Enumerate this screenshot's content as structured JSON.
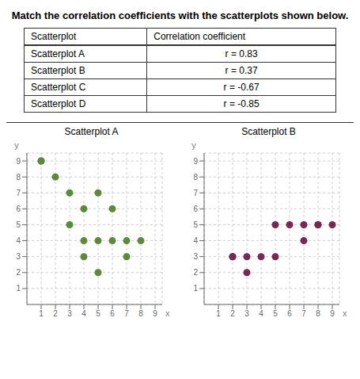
{
  "chart_data": [
    {
      "type": "table",
      "title": "Match the correlation coefficients with the scatterplots shown below.",
      "columns": [
        "Scatterplot",
        "Correlation coefficient"
      ],
      "rows": [
        [
          "Scatterplot A",
          "r = 0.83"
        ],
        [
          "Scatterplot B",
          "r = 0.37"
        ],
        [
          "Scatterplot C",
          "r = -0.67"
        ],
        [
          "Scatterplot D",
          "r = -0.85"
        ]
      ]
    },
    {
      "type": "scatter",
      "title": "Scatterplot A",
      "xlabel": "x",
      "ylabel": "y",
      "color": "#5a8a3a",
      "x": [
        1,
        1,
        2,
        3,
        3,
        4,
        4,
        4,
        5,
        5,
        5,
        6,
        6,
        7,
        7,
        8
      ],
      "y": [
        9,
        9,
        8,
        7,
        5,
        6,
        4,
        3,
        7,
        4,
        2,
        4,
        6,
        3,
        4,
        4
      ],
      "xlim": [
        0,
        9.5
      ],
      "ylim": [
        0,
        9.5
      ],
      "xticks": [
        1,
        2,
        3,
        4,
        5,
        6,
        7,
        8,
        9
      ],
      "yticks": [
        1,
        2,
        3,
        4,
        5,
        6,
        7,
        8,
        9
      ],
      "grid": true
    },
    {
      "type": "scatter",
      "title": "Scatterplot B",
      "xlabel": "x",
      "ylabel": "y",
      "color": "#7a2850",
      "x": [
        2,
        2,
        3,
        3,
        4,
        5,
        5,
        6,
        7,
        7,
        8,
        8,
        9
      ],
      "y": [
        3,
        3,
        3,
        2,
        3,
        5,
        3,
        5,
        5,
        4,
        5,
        5,
        5
      ],
      "xlim": [
        0,
        9.5
      ],
      "ylim": [
        0,
        9.5
      ],
      "xticks": [
        1,
        2,
        3,
        4,
        5,
        6,
        7,
        8,
        9
      ],
      "yticks": [
        1,
        2,
        3,
        4,
        5,
        6,
        7,
        8,
        9
      ],
      "grid": true
    }
  ]
}
